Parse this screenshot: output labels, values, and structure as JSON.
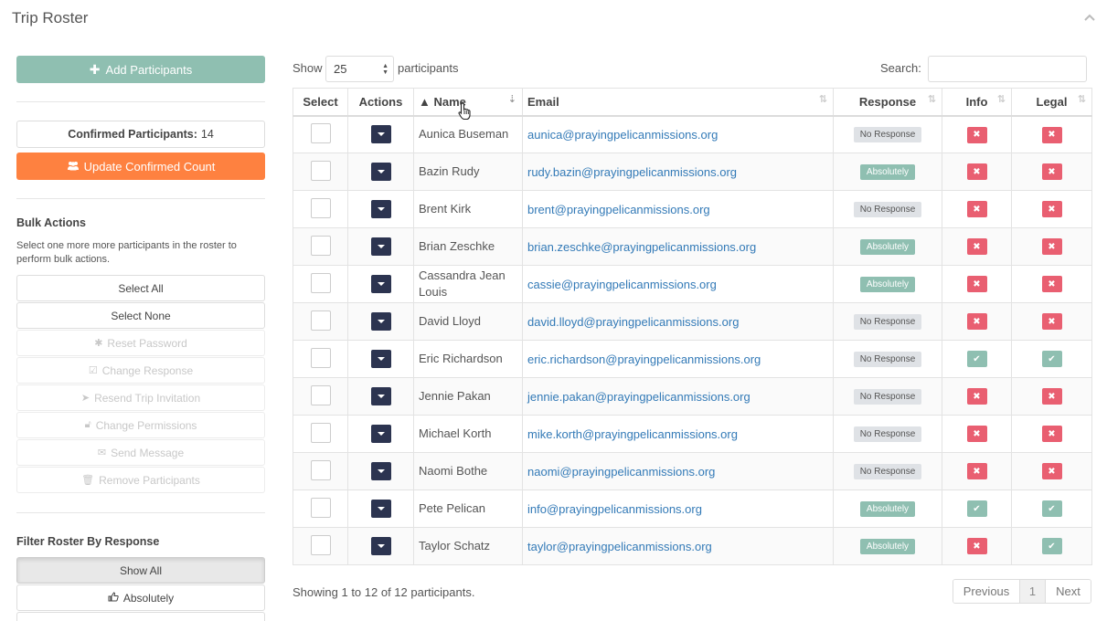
{
  "panel": {
    "title": "Trip Roster"
  },
  "sidebar": {
    "add_participants": "Add Participants",
    "confirmed_label": "Confirmed Participants:",
    "confirmed_count": "14",
    "update_confirmed": "Update Confirmed Count",
    "bulk_title": "Bulk Actions",
    "bulk_desc": "Select one more more participants in the roster to perform bulk actions.",
    "select_all": "Select All",
    "select_none": "Select None",
    "bulk_buttons": [
      {
        "label": "Reset Password",
        "icon": "✱"
      },
      {
        "label": "Change Response",
        "icon": "☑"
      },
      {
        "label": "Resend Trip Invitation",
        "icon": "➤"
      },
      {
        "label": "Change Permissions",
        "icon": "🔓︎"
      },
      {
        "label": "Send Message",
        "icon": "✉"
      },
      {
        "label": "Remove Participants",
        "icon": "🗑︎"
      }
    ],
    "filter_title": "Filter Roster By Response",
    "filter_show_all": "Show All",
    "filter_absolutely": "Absolutely"
  },
  "controls": {
    "show_label": "Show",
    "show_value": "25",
    "participants_label": "participants",
    "search_label": "Search:",
    "search_value": ""
  },
  "table": {
    "headers": {
      "select": "Select",
      "actions": "Actions",
      "name": "Name",
      "email": "Email",
      "response": "Response",
      "info": "Info",
      "legal": "Legal"
    },
    "rows": [
      {
        "name": "Aunica Buseman",
        "email": "aunica@prayingpelicanmissions.org",
        "response": "No Response",
        "info": false,
        "legal": false
      },
      {
        "name": "Bazin Rudy",
        "email": "rudy.bazin@prayingpelicanmissions.org",
        "response": "Absolutely",
        "info": false,
        "legal": false
      },
      {
        "name": "Brent Kirk",
        "email": "brent@prayingpelicanmissions.org",
        "response": "No Response",
        "info": false,
        "legal": false
      },
      {
        "name": "Brian Zeschke",
        "email": "brian.zeschke@prayingpelicanmissions.org",
        "response": "Absolutely",
        "info": false,
        "legal": false
      },
      {
        "name": "Cassandra Jean Louis",
        "email": "cassie@prayingpelicanmissions.org",
        "response": "Absolutely",
        "info": false,
        "legal": false
      },
      {
        "name": "David Lloyd",
        "email": "david.lloyd@prayingpelicanmissions.org",
        "response": "No Response",
        "info": false,
        "legal": false
      },
      {
        "name": "Eric Richardson",
        "email": "eric.richardson@prayingpelicanmissions.org",
        "response": "No Response",
        "info": true,
        "legal": true
      },
      {
        "name": "Jennie Pakan",
        "email": "jennie.pakan@prayingpelicanmissions.org",
        "response": "No Response",
        "info": false,
        "legal": false
      },
      {
        "name": "Michael Korth",
        "email": "mike.korth@prayingpelicanmissions.org",
        "response": "No Response",
        "info": false,
        "legal": false
      },
      {
        "name": "Naomi Bothe",
        "email": "naomi@prayingpelicanmissions.org",
        "response": "No Response",
        "info": false,
        "legal": false
      },
      {
        "name": "Pete Pelican",
        "email": "info@prayingpelicanmissions.org",
        "response": "Absolutely",
        "info": true,
        "legal": true
      },
      {
        "name": "Taylor Schatz",
        "email": "taylor@prayingpelicanmissions.org",
        "response": "Absolutely",
        "info": false,
        "legal": true
      }
    ]
  },
  "footer": {
    "showing": "Showing 1 to 12 of 12 participants.",
    "prev": "Previous",
    "page": "1",
    "next": "Next"
  },
  "colors": {
    "accent": "#8fbfb1",
    "orange": "#fe8140",
    "danger": "#e95f71",
    "dark": "#2c3450",
    "link": "#337ab7"
  }
}
